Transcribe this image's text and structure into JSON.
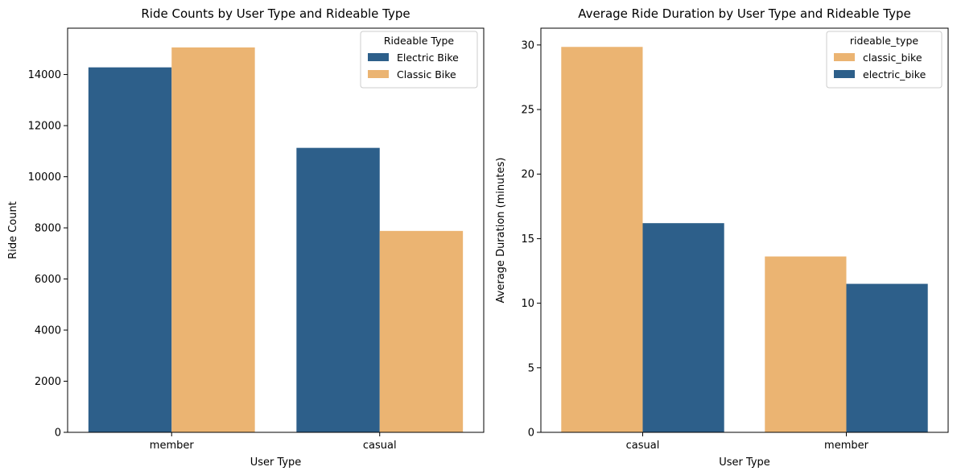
{
  "colors": {
    "blue": "#2d5f8a",
    "orange": "#ebb472",
    "axis": "#000000",
    "legend_border": "#cccccc"
  },
  "chart_data": [
    {
      "type": "bar",
      "title": "Ride Counts by User Type and Rideable Type",
      "xlabel": "User Type",
      "ylabel": "Ride Count",
      "categories": [
        "member",
        "casual"
      ],
      "series": [
        {
          "name": "Electric Bike",
          "color": "#2d5f8a",
          "values": [
            14280,
            11130
          ]
        },
        {
          "name": "Classic Bike",
          "color": "#ebb472",
          "values": [
            15060,
            7880
          ]
        }
      ],
      "ylim": [
        0,
        15813
      ],
      "yticks": [
        0,
        2000,
        4000,
        6000,
        8000,
        10000,
        12000,
        14000
      ],
      "ytick_labels": [
        "0",
        "2000",
        "4000",
        "6000",
        "8000",
        "10000",
        "12000",
        "14000"
      ],
      "grid": false,
      "legend": {
        "title": "Rideable Type",
        "placement": "top-right"
      }
    },
    {
      "type": "bar",
      "title": "Average Ride Duration by User Type and Rideable Type",
      "xlabel": "User Type",
      "ylabel": "Average Duration (minutes)",
      "categories": [
        "casual",
        "member"
      ],
      "series": [
        {
          "name": "classic_bike",
          "color": "#ebb472",
          "values": [
            29.85,
            13.62
          ]
        },
        {
          "name": "electric_bike",
          "color": "#2d5f8a",
          "values": [
            16.2,
            11.5
          ]
        }
      ],
      "ylim": [
        0,
        31.3
      ],
      "yticks": [
        0,
        5,
        10,
        15,
        20,
        25,
        30
      ],
      "ytick_labels": [
        "0",
        "5",
        "10",
        "15",
        "20",
        "25",
        "30"
      ],
      "grid": false,
      "legend": {
        "title": "rideable_type",
        "placement": "top-right"
      }
    }
  ]
}
